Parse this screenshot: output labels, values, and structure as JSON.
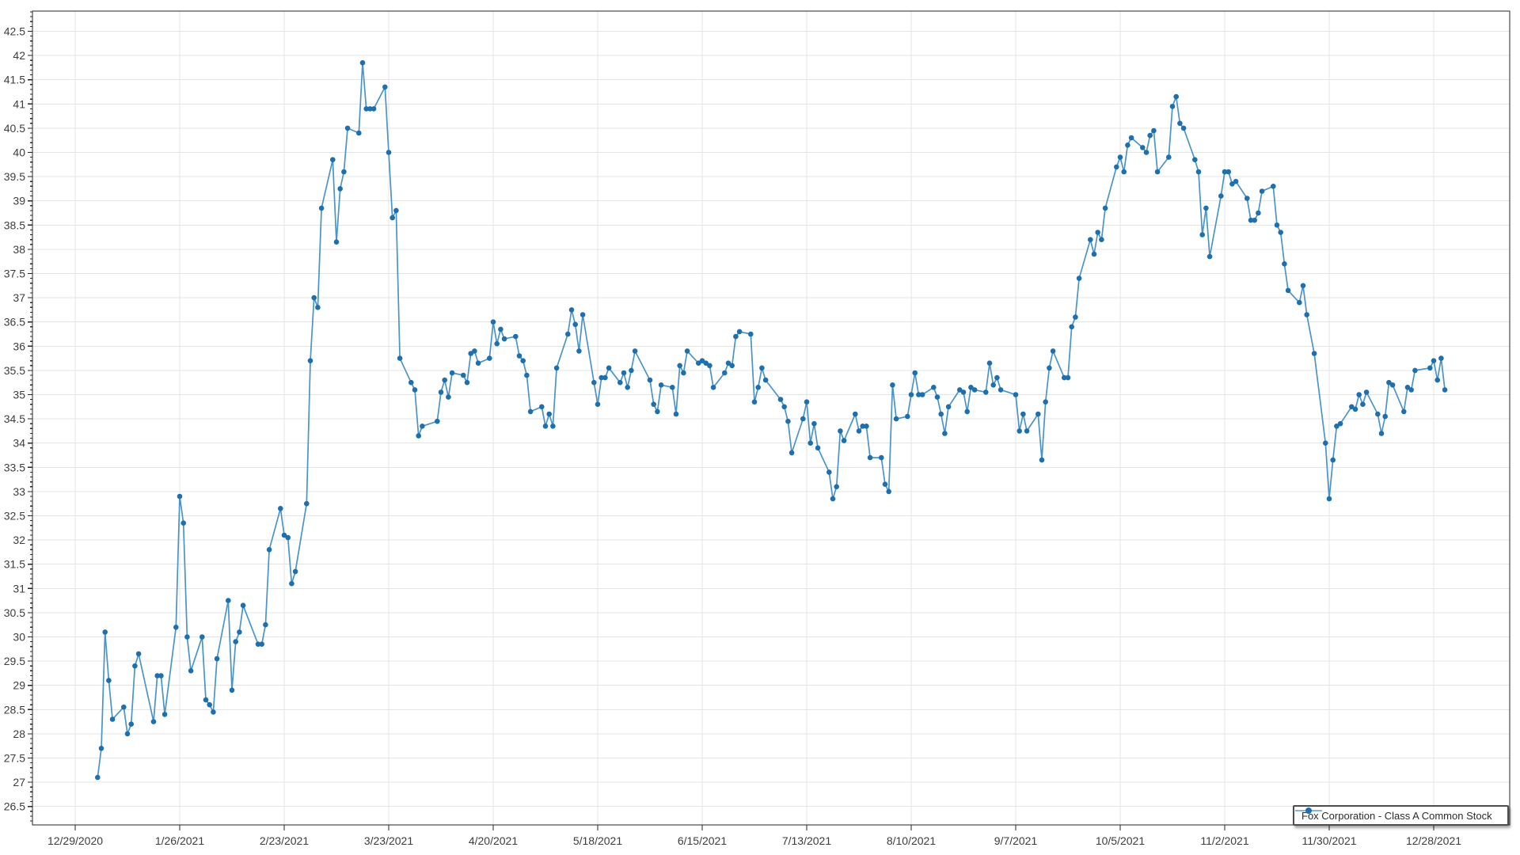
{
  "chart_data": {
    "type": "line",
    "title": "",
    "legend_position": "bottom-right",
    "grid": true,
    "series": [
      {
        "name": "Fox Corporation - Class A Common Stock",
        "line_color": "#4a94c8",
        "marker_color": "#1e6fae",
        "dates": [
          "1/4/2021",
          "1/5/2021",
          "1/6/2021",
          "1/7/2021",
          "1/8/2021",
          "1/11/2021",
          "1/12/2021",
          "1/13/2021",
          "1/14/2021",
          "1/15/2021",
          "1/19/2021",
          "1/20/2021",
          "1/21/2021",
          "1/22/2021",
          "1/25/2021",
          "1/26/2021",
          "1/27/2021",
          "1/28/2021",
          "1/29/2021",
          "2/1/2021",
          "2/2/2021",
          "2/3/2021",
          "2/4/2021",
          "2/5/2021",
          "2/8/2021",
          "2/9/2021",
          "2/10/2021",
          "2/11/2021",
          "2/12/2021",
          "2/16/2021",
          "2/17/2021",
          "2/18/2021",
          "2/19/2021",
          "2/22/2021",
          "2/23/2021",
          "2/24/2021",
          "2/25/2021",
          "2/26/2021",
          "3/1/2021",
          "3/2/2021",
          "3/3/2021",
          "3/4/2021",
          "3/5/2021",
          "3/8/2021",
          "3/9/2021",
          "3/10/2021",
          "3/11/2021",
          "3/12/2021",
          "3/15/2021",
          "3/16/2021",
          "3/17/2021",
          "3/18/2021",
          "3/19/2021",
          "3/22/2021",
          "3/23/2021",
          "3/24/2021",
          "3/25/2021",
          "3/26/2021",
          "3/29/2021",
          "3/30/2021",
          "3/31/2021",
          "4/1/2021",
          "4/5/2021",
          "4/6/2021",
          "4/7/2021",
          "4/8/2021",
          "4/9/2021",
          "4/12/2021",
          "4/13/2021",
          "4/14/2021",
          "4/15/2021",
          "4/16/2021",
          "4/19/2021",
          "4/20/2021",
          "4/21/2021",
          "4/22/2021",
          "4/23/2021",
          "4/26/2021",
          "4/27/2021",
          "4/28/2021",
          "4/29/2021",
          "4/30/2021",
          "5/3/2021",
          "5/4/2021",
          "5/5/2021",
          "5/6/2021",
          "5/7/2021",
          "5/10/2021",
          "5/11/2021",
          "5/12/2021",
          "5/13/2021",
          "5/14/2021",
          "5/17/2021",
          "5/18/2021",
          "5/19/2021",
          "5/20/2021",
          "5/21/2021",
          "5/24/2021",
          "5/25/2021",
          "5/26/2021",
          "5/27/2021",
          "5/28/2021",
          "6/1/2021",
          "6/2/2021",
          "6/3/2021",
          "6/4/2021",
          "6/7/2021",
          "6/8/2021",
          "6/9/2021",
          "6/10/2021",
          "6/11/2021",
          "6/14/2021",
          "6/15/2021",
          "6/16/2021",
          "6/17/2021",
          "6/18/2021",
          "6/21/2021",
          "6/22/2021",
          "6/23/2021",
          "6/24/2021",
          "6/25/2021",
          "6/28/2021",
          "6/29/2021",
          "6/30/2021",
          "7/1/2021",
          "7/2/2021",
          "7/6/2021",
          "7/7/2021",
          "7/8/2021",
          "7/9/2021",
          "7/12/2021",
          "7/13/2021",
          "7/14/2021",
          "7/15/2021",
          "7/16/2021",
          "7/19/2021",
          "7/20/2021",
          "7/21/2021",
          "7/22/2021",
          "7/23/2021",
          "7/26/2021",
          "7/27/2021",
          "7/28/2021",
          "7/29/2021",
          "7/30/2021",
          "8/2/2021",
          "8/3/2021",
          "8/4/2021",
          "8/5/2021",
          "8/6/2021",
          "8/9/2021",
          "8/10/2021",
          "8/11/2021",
          "8/12/2021",
          "8/13/2021",
          "8/16/2021",
          "8/17/2021",
          "8/18/2021",
          "8/19/2021",
          "8/20/2021",
          "8/23/2021",
          "8/24/2021",
          "8/25/2021",
          "8/26/2021",
          "8/27/2021",
          "8/30/2021",
          "8/31/2021",
          "9/1/2021",
          "9/2/2021",
          "9/3/2021",
          "9/7/2021",
          "9/8/2021",
          "9/9/2021",
          "9/10/2021",
          "9/13/2021",
          "9/14/2021",
          "9/15/2021",
          "9/16/2021",
          "9/17/2021",
          "9/20/2021",
          "9/21/2021",
          "9/22/2021",
          "9/23/2021",
          "9/24/2021",
          "9/27/2021",
          "9/28/2021",
          "9/29/2021",
          "9/30/2021",
          "10/1/2021",
          "10/4/2021",
          "10/5/2021",
          "10/6/2021",
          "10/7/2021",
          "10/8/2021",
          "10/11/2021",
          "10/12/2021",
          "10/13/2021",
          "10/14/2021",
          "10/15/2021",
          "10/18/2021",
          "10/19/2021",
          "10/20/2021",
          "10/21/2021",
          "10/22/2021",
          "10/25/2021",
          "10/26/2021",
          "10/27/2021",
          "10/28/2021",
          "10/29/2021",
          "11/1/2021",
          "11/2/2021",
          "11/3/2021",
          "11/4/2021",
          "11/5/2021",
          "11/8/2021",
          "11/9/2021",
          "11/10/2021",
          "11/11/2021",
          "11/12/2021",
          "11/15/2021",
          "11/16/2021",
          "11/17/2021",
          "11/18/2021",
          "11/19/2021",
          "11/22/2021",
          "11/23/2021",
          "11/24/2021",
          "11/26/2021",
          "11/29/2021",
          "11/30/2021",
          "12/1/2021",
          "12/2/2021",
          "12/3/2021",
          "12/6/2021",
          "12/7/2021",
          "12/8/2021",
          "12/9/2021",
          "12/10/2021",
          "12/13/2021",
          "12/14/2021",
          "12/15/2021",
          "12/16/2021",
          "12/17/2021",
          "12/20/2021",
          "12/21/2021",
          "12/22/2021",
          "12/23/2021",
          "12/27/2021",
          "12/28/2021",
          "12/29/2021",
          "12/30/2021",
          "12/31/2021"
        ],
        "values": [
          27.1,
          27.7,
          30.1,
          29.1,
          28.3,
          28.55,
          28.0,
          28.2,
          29.4,
          29.65,
          28.25,
          29.2,
          29.2,
          28.4,
          30.2,
          32.9,
          32.35,
          30.0,
          29.3,
          30.0,
          28.7,
          28.6,
          28.45,
          29.55,
          30.75,
          28.9,
          29.9,
          30.1,
          30.65,
          29.85,
          29.85,
          30.25,
          31.8,
          32.65,
          32.1,
          32.05,
          31.1,
          31.35,
          32.75,
          35.7,
          37.0,
          36.8,
          38.85,
          39.85,
          38.15,
          39.25,
          39.6,
          40.5,
          40.4,
          41.85,
          40.9,
          40.9,
          40.9,
          41.35,
          40.0,
          38.65,
          38.8,
          35.75,
          35.25,
          35.1,
          34.15,
          34.35,
          34.45,
          35.05,
          35.3,
          34.95,
          35.45,
          35.4,
          35.25,
          35.85,
          35.9,
          35.65,
          35.75,
          36.5,
          36.05,
          36.35,
          36.15,
          36.2,
          35.8,
          35.7,
          35.4,
          34.65,
          34.75,
          34.35,
          34.6,
          34.35,
          35.55,
          36.25,
          36.75,
          36.45,
          35.9,
          36.65,
          35.25,
          34.8,
          35.35,
          35.35,
          35.55,
          35.25,
          35.45,
          35.15,
          35.5,
          35.9,
          35.3,
          34.8,
          34.65,
          35.2,
          35.15,
          34.6,
          35.6,
          35.45,
          35.9,
          35.65,
          35.7,
          35.65,
          35.6,
          35.15,
          35.45,
          35.65,
          35.6,
          36.2,
          36.3,
          36.25,
          34.85,
          35.15,
          35.55,
          35.3,
          34.9,
          34.75,
          34.45,
          33.8,
          34.5,
          34.85,
          34.0,
          34.4,
          33.9,
          33.4,
          32.85,
          33.1,
          34.25,
          34.05,
          34.6,
          34.25,
          34.35,
          34.35,
          33.7,
          33.7,
          33.15,
          33.0,
          35.2,
          34.5,
          34.55,
          35.0,
          35.45,
          35.0,
          35.0,
          35.15,
          34.95,
          34.6,
          34.2,
          34.75,
          35.1,
          35.05,
          34.65,
          35.15,
          35.1,
          35.05,
          35.65,
          35.2,
          35.35,
          35.1,
          35.0,
          34.25,
          34.6,
          34.25,
          34.6,
          33.65,
          34.85,
          35.55,
          35.9,
          35.35,
          35.35,
          36.4,
          36.6,
          37.4,
          38.2,
          37.9,
          38.35,
          38.2,
          38.85,
          39.7,
          39.9,
          39.6,
          40.15,
          40.3,
          40.1,
          40.0,
          40.35,
          40.45,
          39.6,
          39.9,
          40.95,
          41.15,
          40.6,
          40.5,
          39.85,
          39.6,
          38.3,
          38.85,
          37.85,
          39.1,
          39.6,
          39.6,
          39.35,
          39.4,
          39.05,
          38.6,
          38.6,
          38.75,
          39.2,
          39.3,
          38.5,
          38.35,
          37.7,
          37.15,
          36.9,
          37.25,
          36.65,
          35.85,
          34.0,
          32.85,
          33.65,
          34.35,
          34.4,
          34.75,
          34.7,
          35.0,
          34.8,
          35.05,
          34.6,
          34.2,
          34.55,
          35.25,
          35.2,
          34.65,
          35.15,
          35.1,
          35.5,
          35.55,
          35.7,
          35.3,
          35.75,
          35.1
        ]
      }
    ],
    "x_axis": {
      "start_date": "12/29/2020",
      "tick_interval_days": 28,
      "tick_labels": [
        "12/29/2020",
        "1/26/2021",
        "2/23/2021",
        "3/23/2021",
        "4/20/2021",
        "5/18/2021",
        "6/15/2021",
        "7/13/2021",
        "8/10/2021",
        "9/7/2021",
        "10/5/2021",
        "11/2/2021",
        "11/30/2021",
        "12/28/2021"
      ]
    },
    "y_axis": {
      "min": 26.5,
      "max": 42.5,
      "step": 0.5,
      "minor_step": 0.1,
      "tick_labels": [
        "42.5",
        "42",
        "41.5",
        "41",
        "40.5",
        "40",
        "39.5",
        "39",
        "38.5",
        "38",
        "37.5",
        "37",
        "36.5",
        "36",
        "35.5",
        "35",
        "34.5",
        "34",
        "33.5",
        "33",
        "32.5",
        "32",
        "31.5",
        "31",
        "30.5",
        "30",
        "29.5",
        "29",
        "28.5",
        "28",
        "27.5",
        "27",
        "26.5"
      ]
    },
    "colors": {
      "grid": "#e4e4e4",
      "axis": "#262626",
      "tick_label": "#3d3d3d",
      "legend_border": "#4d4d4d",
      "legend_icon_line": "#85b5d9",
      "legend_icon_marker": "#1e6fae"
    }
  }
}
